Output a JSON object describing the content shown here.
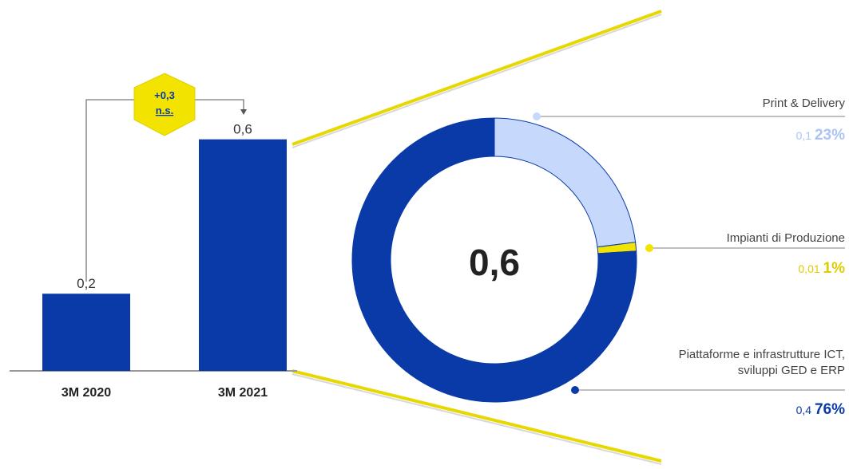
{
  "chart_data": [
    {
      "type": "bar",
      "categories": [
        "3M 2020",
        "3M 2021"
      ],
      "values": [
        0.2,
        0.6
      ],
      "value_labels": [
        "0,2",
        "0,6"
      ],
      "ylim": [
        0,
        0.62
      ],
      "color": "#0a3aa8",
      "annotation": {
        "delta_label": "+0,3",
        "note_label": "n.s.",
        "badge_color": "#f2e300"
      }
    },
    {
      "type": "pie",
      "style": "donut",
      "center_label": "0,6",
      "segments": [
        {
          "name_lines": [
            "Print & Delivery"
          ],
          "value": 0.1,
          "value_label": "0,1",
          "percent": 23,
          "percent_label": "23%",
          "color": "#c6d8fb",
          "text_color": "#aac4f5"
        },
        {
          "name_lines": [
            "Impianti di Produzione"
          ],
          "value": 0.01,
          "value_label": "0,01",
          "percent": 1,
          "percent_label": "1%",
          "color": "#f2e300",
          "text_color": "#e0cc00"
        },
        {
          "name_lines": [
            "Piattaforme e infrastrutture ICT,",
            "sviluppi GED e ERP"
          ],
          "value": 0.4,
          "value_label": "0,4",
          "percent": 76,
          "percent_label": "76%",
          "color": "#0a3aa8",
          "text_color": "#0a3aa8"
        }
      ]
    }
  ]
}
